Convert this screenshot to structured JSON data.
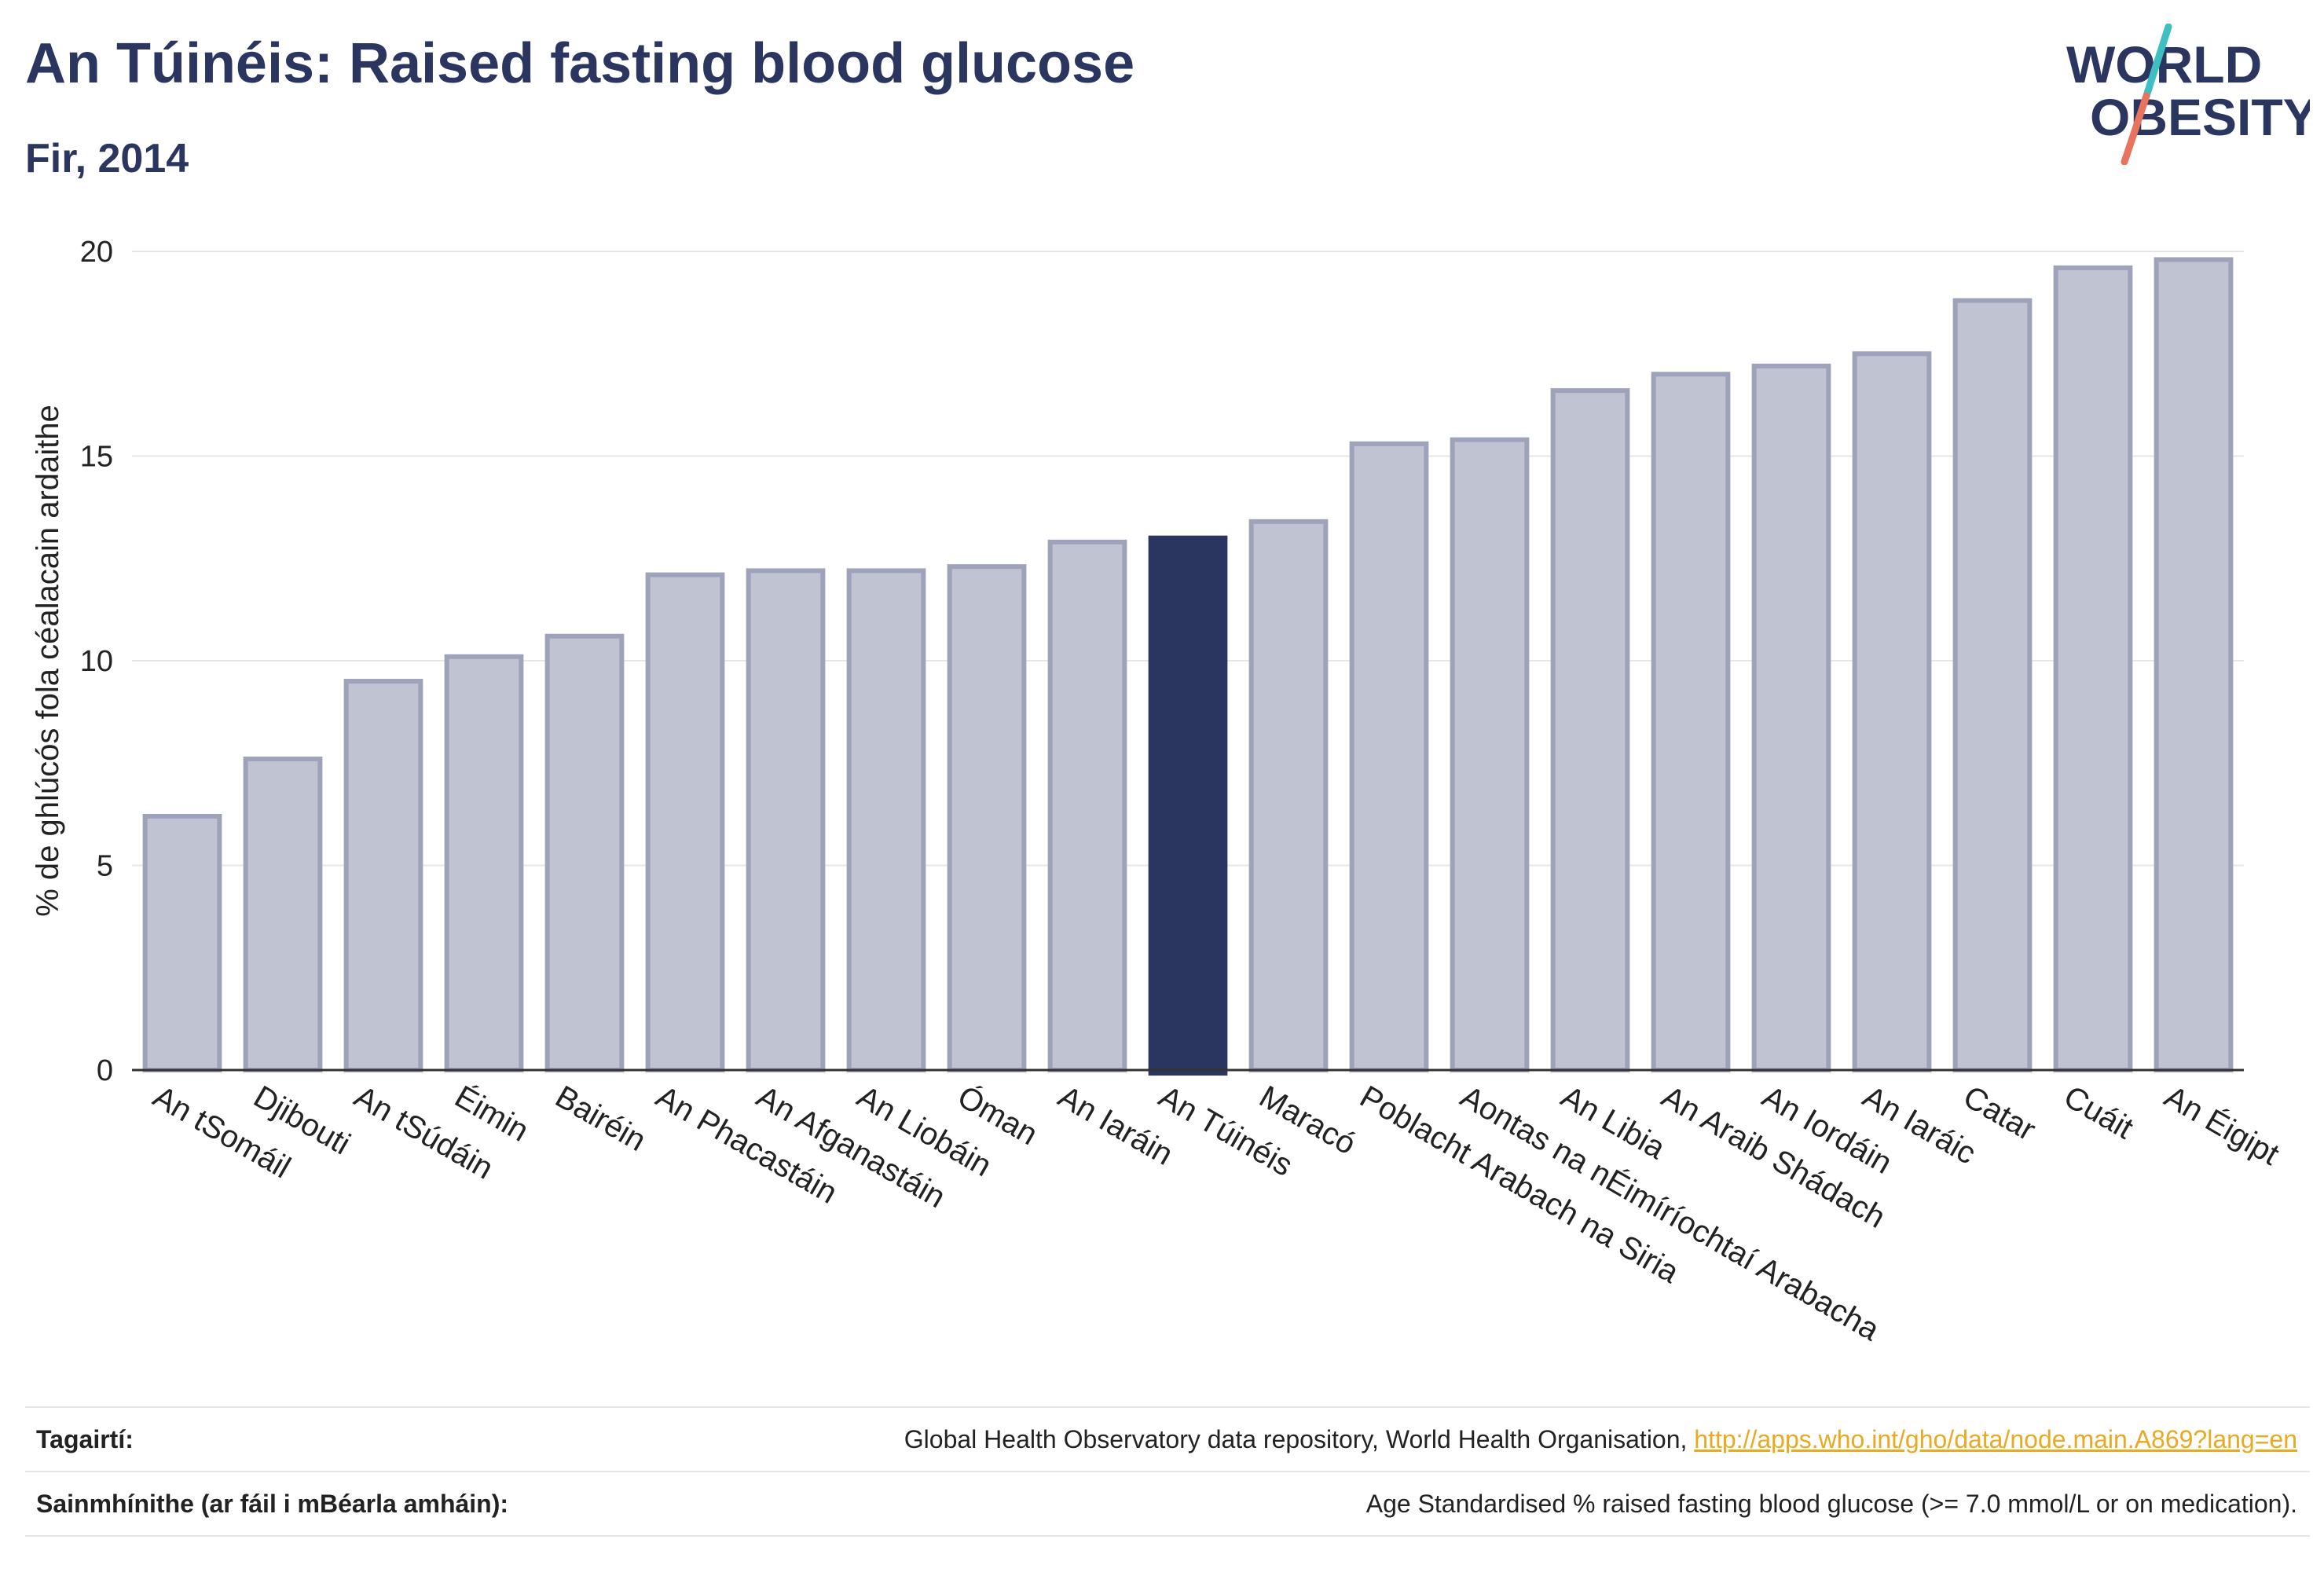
{
  "header": {
    "title": "An Túinéis: Raised fasting blood glucose",
    "subtitle": "Fir, 2014"
  },
  "logo": {
    "line1": "WORLD",
    "line2": "OBESITY"
  },
  "colors": {
    "highlight": "#2b3660",
    "bar_fill": "#c0c3d1",
    "bar_stroke": "#9ea3bb",
    "grid": "#e6e6e6",
    "axis": "#333333",
    "logo_teal": "#3fbfc1",
    "logo_coral": "#e8735f"
  },
  "chart_data": {
    "type": "bar",
    "ylabel": "% de ghlúcós fola céalacain ardaithe",
    "ylim": [
      0,
      20
    ],
    "yticks": [
      0,
      5,
      10,
      15,
      20
    ],
    "grid": true,
    "highlight": "An Túinéis",
    "categories": [
      "An tSomáil",
      "Djibouti",
      "An tSúdáin",
      "Éimin",
      "Bairéin",
      "An Phacastáin",
      "An Afganastáin",
      "An Liobáin",
      "Óman",
      "An Iaráin",
      "An Túinéis",
      "Maracó",
      "Poblacht Arabach na Siria",
      "Aontas na nÉimíríochtaí Arabacha",
      "An Libia",
      "An Araib Shádach",
      "An Iordáin",
      "An Iaráic",
      "Catar",
      "Cuáit",
      "An Éigipt"
    ],
    "values": [
      6.2,
      7.6,
      9.5,
      10.1,
      10.6,
      12.1,
      12.2,
      12.2,
      12.3,
      12.9,
      13.0,
      13.4,
      15.3,
      15.4,
      16.6,
      17.0,
      17.2,
      17.5,
      18.8,
      19.6,
      19.8
    ]
  },
  "footer": {
    "references_label": "Tagairtí:",
    "references_text": "Global Health Observatory data repository, World Health Organisation,",
    "references_link": "http://apps.who.int/gho/data/node.main.A869?lang=en",
    "definitions_label": "Sainmhínithe (ar fáil i mBéarla amháin):",
    "definitions_text": "Age Standardised % raised fasting blood glucose (>= 7.0 mmol/L or on medication)."
  }
}
